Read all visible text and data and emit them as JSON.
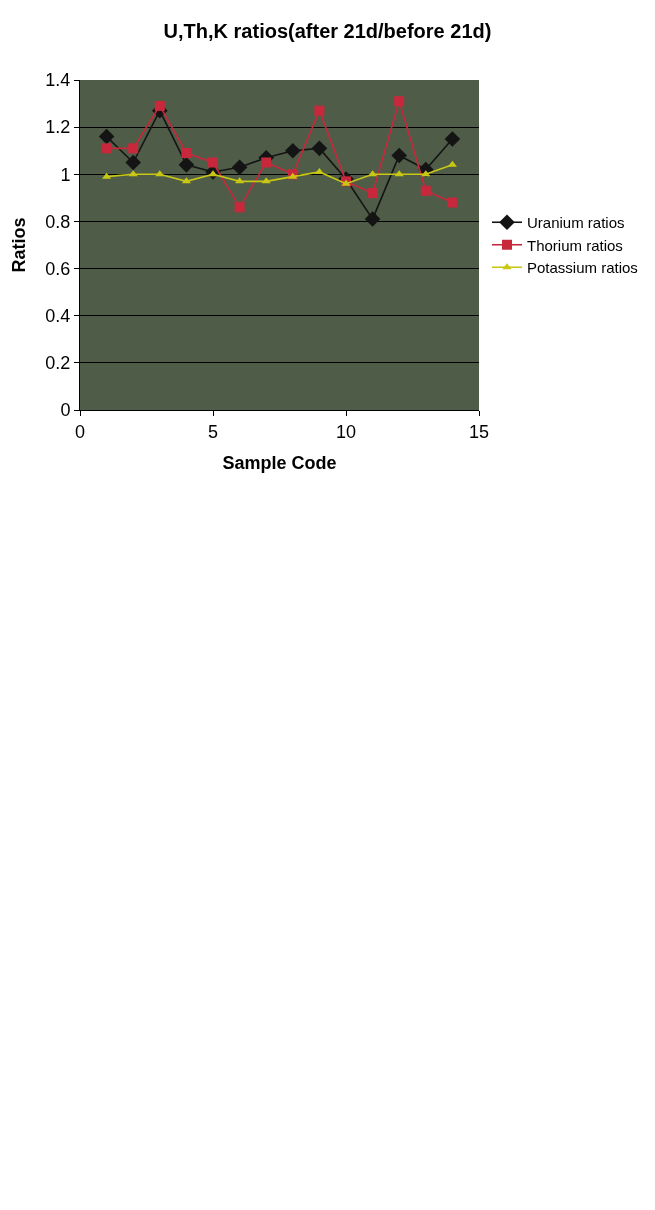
{
  "chart_data": {
    "type": "line",
    "title": "U,Th,K ratios(after 21d/before 21d)",
    "xlabel": "Sample Code",
    "ylabel": "Ratios",
    "x": [
      1,
      2,
      3,
      4,
      5,
      6,
      7,
      8,
      9,
      10,
      11,
      12,
      13,
      14
    ],
    "series": [
      {
        "name": "Uranium ratios",
        "color": "#141414",
        "marker": "diamond",
        "values": [
          1.16,
          1.05,
          1.27,
          1.04,
          1.01,
          1.03,
          1.07,
          1.1,
          1.11,
          0.98,
          0.81,
          1.08,
          1.02,
          1.15
        ]
      },
      {
        "name": "Thorium ratios",
        "color": "#c8283c",
        "marker": "square",
        "values": [
          1.11,
          1.11,
          1.29,
          1.09,
          1.05,
          0.86,
          1.05,
          1.0,
          1.27,
          0.97,
          0.92,
          1.31,
          0.93,
          0.88
        ]
      },
      {
        "name": "Potassium ratios",
        "color": "#c8c814",
        "marker": "triangle",
        "values": [
          0.99,
          1.0,
          1.0,
          0.97,
          1.0,
          0.97,
          0.97,
          0.99,
          1.01,
          0.96,
          1.0,
          1.0,
          1.0,
          1.04
        ]
      }
    ],
    "xlim": [
      0,
      15
    ],
    "xticks": [
      0,
      5,
      10,
      15
    ],
    "ylim": [
      0,
      1.4
    ],
    "yticks": [
      0,
      0.2,
      0.4,
      0.6,
      0.8,
      1,
      1.2,
      1.4
    ],
    "grid": "y",
    "legend": "right",
    "line_style": "solid"
  }
}
